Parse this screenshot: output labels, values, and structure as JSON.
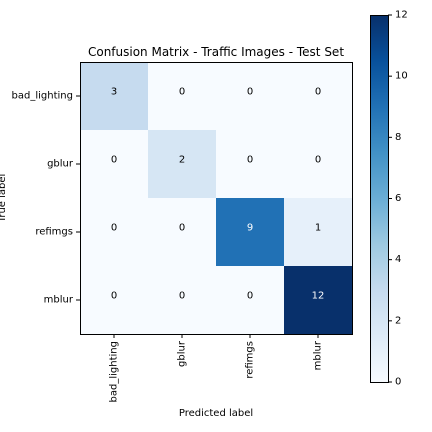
{
  "chart_data": {
    "type": "heatmap",
    "title": "Confusion Matrix - Traffic Images - Test Set",
    "xlabel": "Predicted label",
    "ylabel": "True label",
    "x_categories": [
      "bad_lighting",
      "gblur",
      "refimgs",
      "mblur"
    ],
    "y_categories": [
      "bad_lighting",
      "gblur",
      "refimgs",
      "mblur"
    ],
    "values": [
      [
        3,
        0,
        0,
        0
      ],
      [
        0,
        2,
        0,
        0
      ],
      [
        0,
        0,
        9,
        1
      ],
      [
        0,
        0,
        0,
        12
      ]
    ],
    "colorbar": {
      "min": 0,
      "max": 12,
      "ticks": [
        0,
        2,
        4,
        6,
        8,
        10,
        12
      ],
      "colormap": "Blues"
    },
    "grid": false,
    "legend": "colorbar-right"
  }
}
